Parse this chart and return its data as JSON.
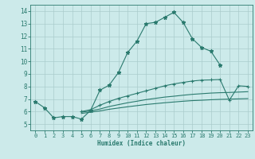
{
  "title": "",
  "xlabel": "Humidex (Indice chaleur)",
  "ylabel": "",
  "bg_color": "#cceaea",
  "line_color": "#2a7a6e",
  "grid_color": "#aacccc",
  "xlim": [
    -0.5,
    23.5
  ],
  "ylim": [
    4.5,
    14.5
  ],
  "xticks": [
    0,
    1,
    2,
    3,
    4,
    5,
    6,
    7,
    8,
    9,
    10,
    11,
    12,
    13,
    14,
    15,
    16,
    17,
    18,
    19,
    20,
    21,
    22,
    23
  ],
  "yticks": [
    5,
    6,
    7,
    8,
    9,
    10,
    11,
    12,
    13,
    14
  ],
  "lines": [
    {
      "x": [
        0,
        1,
        2,
        3,
        4,
        5,
        6,
        7,
        8,
        9,
        10,
        11,
        12,
        13,
        14,
        15,
        16,
        17,
        18,
        19,
        20
      ],
      "y": [
        6.8,
        6.3,
        5.5,
        5.6,
        5.6,
        5.4,
        6.1,
        7.7,
        8.1,
        9.1,
        10.7,
        11.6,
        13.0,
        13.1,
        13.5,
        13.9,
        13.1,
        11.8,
        11.1,
        10.8,
        9.7
      ],
      "marker": "*",
      "markersize": 3.5
    },
    {
      "x": [
        5,
        6,
        7,
        8,
        9,
        10,
        11,
        12,
        13,
        14,
        15,
        16,
        17,
        18,
        19,
        20,
        21,
        22,
        23
      ],
      "y": [
        6.0,
        6.15,
        6.5,
        6.8,
        7.05,
        7.25,
        7.45,
        7.65,
        7.85,
        8.05,
        8.2,
        8.32,
        8.43,
        8.5,
        8.52,
        8.55,
        6.9,
        8.05,
        8.0
      ],
      "marker": "+",
      "markersize": 3.5
    },
    {
      "x": [
        5,
        6,
        7,
        8,
        9,
        10,
        11,
        12,
        13,
        14,
        15,
        16,
        17,
        18,
        19,
        20,
        21,
        22,
        23
      ],
      "y": [
        5.95,
        6.05,
        6.2,
        6.4,
        6.55,
        6.7,
        6.82,
        6.95,
        7.05,
        7.15,
        7.22,
        7.3,
        7.37,
        7.42,
        7.47,
        7.5,
        7.52,
        7.55,
        7.58
      ],
      "marker": null,
      "markersize": 0
    },
    {
      "x": [
        5,
        6,
        7,
        8,
        9,
        10,
        11,
        12,
        13,
        14,
        15,
        16,
        17,
        18,
        19,
        20,
        21,
        22,
        23
      ],
      "y": [
        5.85,
        5.95,
        6.05,
        6.18,
        6.28,
        6.38,
        6.47,
        6.56,
        6.63,
        6.7,
        6.76,
        6.82,
        6.87,
        6.9,
        6.94,
        6.97,
        6.99,
        7.01,
        7.03
      ],
      "marker": null,
      "markersize": 0
    }
  ]
}
